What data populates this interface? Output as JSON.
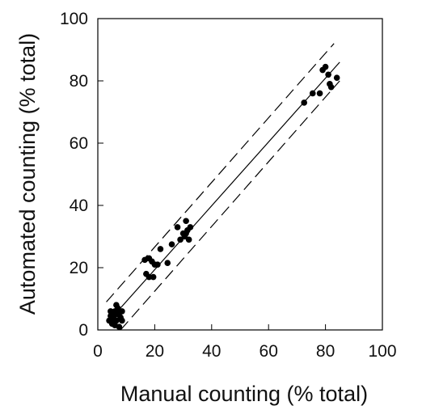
{
  "chart_data": {
    "type": "scatter",
    "title": "",
    "xlabel": "Manual counting (% total)",
    "ylabel": "Automated counting (% total)",
    "xlim": [
      0,
      100
    ],
    "ylim": [
      0,
      100
    ],
    "xticks": [
      0,
      20,
      40,
      60,
      80,
      100
    ],
    "yticks": [
      0,
      20,
      40,
      60,
      80,
      100
    ],
    "grid": false,
    "legend": "none",
    "points": [
      [
        4,
        3
      ],
      [
        4.5,
        6
      ],
      [
        5,
        2
      ],
      [
        5,
        5
      ],
      [
        5.5,
        4
      ],
      [
        6,
        6
      ],
      [
        6,
        1.5
      ],
      [
        6.5,
        8
      ],
      [
        6.5,
        3
      ],
      [
        7,
        5
      ],
      [
        7,
        7
      ],
      [
        7.5,
        1
      ],
      [
        8,
        4
      ],
      [
        8.5,
        3
      ],
      [
        8.5,
        6
      ],
      [
        5.5,
        2.5
      ],
      [
        7.5,
        5.5
      ],
      [
        4.5,
        4.5
      ],
      [
        16.5,
        22.5
      ],
      [
        17,
        18
      ],
      [
        18,
        17
      ],
      [
        18,
        23
      ],
      [
        19,
        22
      ],
      [
        19.5,
        17
      ],
      [
        20,
        21
      ],
      [
        21,
        21
      ],
      [
        22,
        26
      ],
      [
        24.5,
        21.5
      ],
      [
        26,
        27.5
      ],
      [
        28,
        33
      ],
      [
        29,
        29
      ],
      [
        30,
        31
      ],
      [
        30.5,
        30
      ],
      [
        31,
        35
      ],
      [
        31.5,
        32
      ],
      [
        32,
        29
      ],
      [
        32.5,
        33
      ],
      [
        31,
        31
      ],
      [
        72.5,
        73
      ],
      [
        75.5,
        76
      ],
      [
        78,
        76
      ],
      [
        79,
        83.5
      ],
      [
        80,
        84.5
      ],
      [
        81,
        82
      ],
      [
        81.5,
        79
      ],
      [
        82,
        78
      ],
      [
        84,
        81
      ]
    ],
    "lines": [
      {
        "style": "solid",
        "points": [
          [
            5,
            4
          ],
          [
            85,
            86
          ]
        ]
      },
      {
        "style": "dashed",
        "points": [
          [
            3,
            9
          ],
          [
            83,
            92
          ]
        ]
      },
      {
        "style": "dashed",
        "points": [
          [
            8,
            0
          ],
          [
            85,
            80
          ]
        ]
      }
    ],
    "colors": {
      "points": "#000000",
      "lines": "#000000",
      "axes": "#000000"
    }
  }
}
